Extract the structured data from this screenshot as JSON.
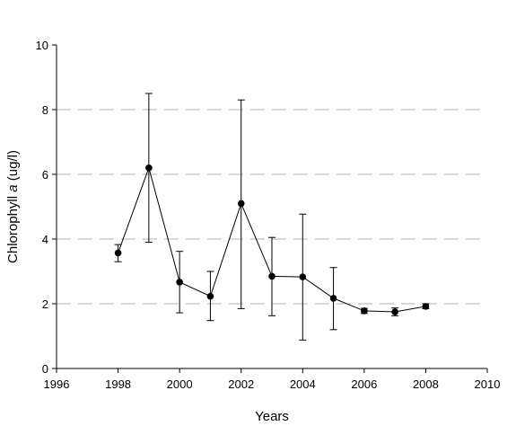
{
  "chart_data": {
    "type": "scatter",
    "xlabel": "Years",
    "ylabel": {
      "prefix": "Chlorophyll ",
      "italic": "a",
      "suffix": " (ug/l)"
    },
    "xlim": [
      1996,
      2010
    ],
    "ylim": [
      0,
      10
    ],
    "x_ticks": [
      1996,
      1998,
      2000,
      2002,
      2004,
      2006,
      2008,
      2010
    ],
    "y_ticks": [
      0,
      2,
      4,
      6,
      8,
      10
    ],
    "grid": "horizontal dashed",
    "legend": "none",
    "line_color": "#000000",
    "marker_color": "#000000",
    "grid_color": "#b0b0b0",
    "series": [
      {
        "x": [
          1998,
          1999,
          2000,
          2001,
          2002,
          2003,
          2004,
          2005,
          2006,
          2007,
          2008
        ],
        "y": [
          3.57,
          6.2,
          2.67,
          2.23,
          5.1,
          2.85,
          2.83,
          2.17,
          1.78,
          1.75,
          1.92
        ],
        "y_low": [
          3.3,
          3.9,
          1.72,
          1.48,
          1.85,
          1.63,
          0.88,
          1.2,
          1.7,
          1.63,
          1.85
        ],
        "y_high": [
          3.83,
          8.5,
          3.62,
          3.0,
          8.3,
          4.05,
          4.77,
          3.12,
          1.86,
          1.87,
          2.0
        ]
      }
    ]
  }
}
